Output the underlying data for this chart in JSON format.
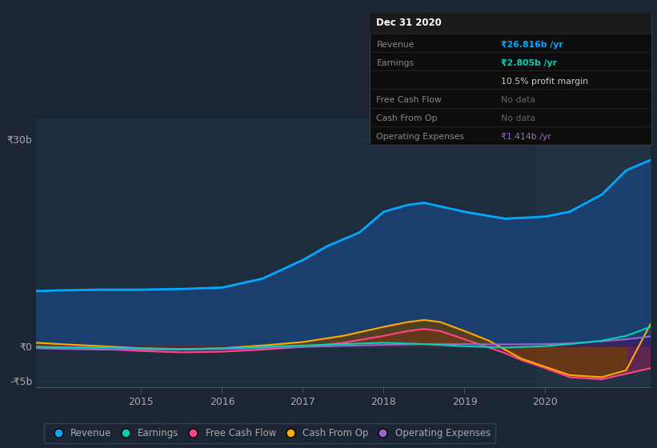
{
  "background_color": "#1c2534",
  "plot_bg_color": "#1e2d3e",
  "plot_bg_left": "#192030",
  "grid_color": "#263545",
  "text_color": "#aaaaaa",
  "ylim": [
    -6000000000.0,
    33000000000.0
  ],
  "yticks": [
    -5000000000.0,
    0,
    30000000000.0
  ],
  "ytick_labels": [
    "-₹5b",
    "₹0",
    "₹30b"
  ],
  "xlim": [
    2013.7,
    2021.3
  ],
  "xticks": [
    2015,
    2016,
    2017,
    2018,
    2019,
    2020
  ],
  "Revenue": {
    "color": "#00aaff",
    "fill_color": "#1a3f6f",
    "x": [
      2013.7,
      2014.0,
      2014.5,
      2015.0,
      2015.5,
      2016.0,
      2016.5,
      2017.0,
      2017.3,
      2017.7,
      2018.0,
      2018.3,
      2018.5,
      2019.0,
      2019.5,
      2020.0,
      2020.3,
      2020.7,
      2021.0,
      2021.3
    ],
    "y": [
      8000000000.0,
      8100000000.0,
      8200000000.0,
      8200000000.0,
      8300000000.0,
      8500000000.0,
      9800000000.0,
      12500000000.0,
      14500000000.0,
      16500000000.0,
      19500000000.0,
      20500000000.0,
      20800000000.0,
      19500000000.0,
      18500000000.0,
      18800000000.0,
      19500000000.0,
      22000000000.0,
      25500000000.0,
      27000000000.0
    ]
  },
  "Earnings": {
    "color": "#00d4b4",
    "x": [
      2013.7,
      2014.0,
      2014.5,
      2015.0,
      2015.5,
      2016.0,
      2016.5,
      2017.0,
      2017.5,
      2018.0,
      2018.5,
      2019.0,
      2019.5,
      2020.0,
      2020.3,
      2020.7,
      2021.0,
      2021.3
    ],
    "y": [
      -100000000.0,
      -150000000.0,
      -200000000.0,
      -300000000.0,
      -400000000.0,
      -300000000.0,
      -100000000.0,
      100000000.0,
      300000000.0,
      500000000.0,
      300000000.0,
      0.0,
      -200000000.0,
      0.0,
      300000000.0,
      800000000.0,
      1500000000.0,
      2800000000.0
    ]
  },
  "Free_Cash_Flow": {
    "color": "#ff4488",
    "fill_color": "#7a2255",
    "x": [
      2013.7,
      2014.0,
      2014.5,
      2015.0,
      2015.5,
      2016.0,
      2016.5,
      2017.0,
      2017.5,
      2018.0,
      2018.3,
      2018.5,
      2018.7,
      2019.0,
      2019.3,
      2019.5,
      2019.7,
      2020.0,
      2020.3,
      2020.7,
      2021.0,
      2021.3
    ],
    "y": [
      -100000000.0,
      -200000000.0,
      -400000000.0,
      -700000000.0,
      -900000000.0,
      -800000000.0,
      -500000000.0,
      -100000000.0,
      500000000.0,
      1500000000.0,
      2200000000.0,
      2500000000.0,
      2200000000.0,
      1000000000.0,
      -200000000.0,
      -1000000000.0,
      -2000000000.0,
      -3200000000.0,
      -4500000000.0,
      -4800000000.0,
      -4000000000.0,
      -3200000000.0
    ]
  },
  "Cash_From_Op": {
    "color": "#ffaa00",
    "fill_color": "#6a4000",
    "x": [
      2013.7,
      2014.0,
      2014.5,
      2015.0,
      2015.5,
      2016.0,
      2016.5,
      2017.0,
      2017.5,
      2018.0,
      2018.3,
      2018.5,
      2018.7,
      2019.0,
      2019.3,
      2019.5,
      2019.7,
      2020.0,
      2020.3,
      2020.7,
      2021.0,
      2021.3
    ],
    "y": [
      500000000.0,
      300000000.0,
      0.0,
      -300000000.0,
      -500000000.0,
      -300000000.0,
      100000000.0,
      600000000.0,
      1500000000.0,
      2800000000.0,
      3500000000.0,
      3800000000.0,
      3500000000.0,
      2200000000.0,
      800000000.0,
      -500000000.0,
      -1800000000.0,
      -3000000000.0,
      -4200000000.0,
      -4500000000.0,
      -3500000000.0,
      3200000000.0
    ]
  },
  "Operating_Expenses": {
    "color": "#9966cc",
    "fill_color": "#3d1a66",
    "x": [
      2013.7,
      2014.0,
      2014.5,
      2015.0,
      2015.5,
      2016.0,
      2016.5,
      2017.0,
      2017.5,
      2018.0,
      2018.5,
      2019.0,
      2019.5,
      2020.0,
      2020.3,
      2020.7,
      2021.0,
      2021.3
    ],
    "y": [
      -300000000.0,
      -400000000.0,
      -500000000.0,
      -500000000.0,
      -500000000.0,
      -400000000.0,
      -300000000.0,
      -100000000.0,
      50000000.0,
      200000000.0,
      300000000.0,
      300000000.0,
      250000000.0,
      300000000.0,
      400000000.0,
      700000000.0,
      1000000000.0,
      1400000000.0
    ]
  },
  "highlight_x_start": 2019.9,
  "highlight_x_end": 2021.3,
  "tooltip": {
    "date": "Dec 31 2020",
    "rows": [
      {
        "label": "Revenue",
        "value": "₹26.816b /yr",
        "value_color": "#00aaff"
      },
      {
        "label": "Earnings",
        "value": "₹2.805b /yr",
        "value_color": "#00d4b4"
      },
      {
        "label": "",
        "value": "10.5% profit margin",
        "value_color": "#cccccc"
      },
      {
        "label": "Free Cash Flow",
        "value": "No data",
        "value_color": "#666666"
      },
      {
        "label": "Cash From Op",
        "value": "No data",
        "value_color": "#666666"
      },
      {
        "label": "Operating Expenses",
        "value": "₹1.414b /yr",
        "value_color": "#9966cc"
      }
    ]
  },
  "legend": [
    {
      "label": "Revenue",
      "color": "#00aaff"
    },
    {
      "label": "Earnings",
      "color": "#00d4b4"
    },
    {
      "label": "Free Cash Flow",
      "color": "#ff4488"
    },
    {
      "label": "Cash From Op",
      "color": "#ffaa00"
    },
    {
      "label": "Operating Expenses",
      "color": "#9966cc"
    }
  ]
}
